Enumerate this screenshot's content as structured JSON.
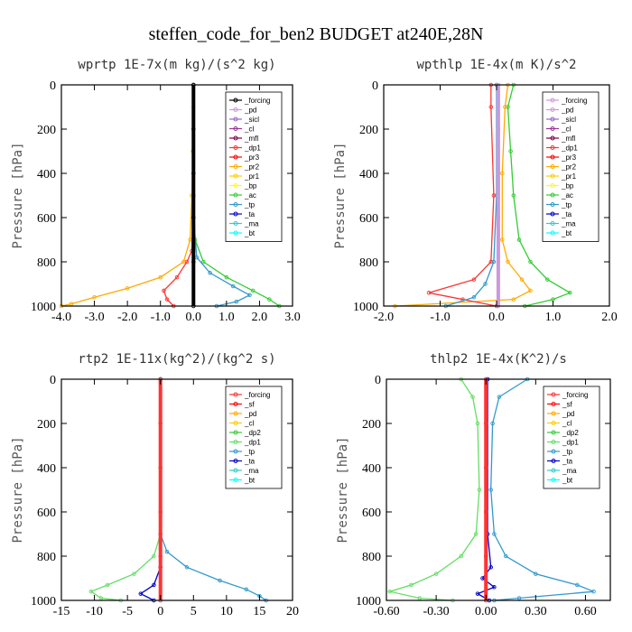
{
  "figure_title": "steffen_code_for_ben2  BUDGET at240E,28N",
  "chart_data": [
    {
      "type": "line",
      "title": "wprtp  1E-7x(m kg)/(s^2 kg)",
      "ylabel": "Pressure [hPa]",
      "xlim": [
        -4.0,
        3.0
      ],
      "ylim": [
        1000,
        0
      ],
      "xticks": [
        "-4.0",
        "-3.0",
        "-2.0",
        "-1.0",
        "0.0",
        "1.0",
        "2.0",
        "3.0"
      ],
      "yticks": [
        "0",
        "200",
        "400",
        "600",
        "800",
        "1000"
      ],
      "legend_position": "top-right",
      "legend_names": [
        "_forcing",
        "_pd",
        "_sicl",
        "_cl",
        "_mfl",
        "_dp1",
        "_pr3",
        "_pr2",
        "_pr1",
        "_bp",
        "_ac",
        "_tp",
        "_ta",
        "_ma",
        "_bt"
      ],
      "legend_colors": [
        "#000000",
        "#cc99dd",
        "#9966cc",
        "#993399",
        "#800040",
        "#ff3333",
        "#ff0000",
        "#ffaa00",
        "#ffcc00",
        "#ffff00",
        "#33cc33",
        "#3399cc",
        "#0000cc",
        "#33cccc",
        "#00ffff"
      ],
      "series": [
        {
          "name": "_pr2",
          "color": "#ffaa00",
          "points": [
            [
              0,
              0
            ],
            [
              0,
              100
            ],
            [
              -0.02,
              300
            ],
            [
              -0.05,
              500
            ],
            [
              -0.1,
              700
            ],
            [
              -0.3,
              800
            ],
            [
              -1.0,
              870
            ],
            [
              -2.0,
              920
            ],
            [
              -3.0,
              960
            ],
            [
              -3.7,
              990
            ],
            [
              -4.0,
              1000
            ]
          ]
        },
        {
          "name": "_dp1",
          "color": "#ff3333",
          "points": [
            [
              0,
              0
            ],
            [
              0,
              500
            ],
            [
              -0.05,
              750
            ],
            [
              -0.2,
              800
            ],
            [
              -0.5,
              870
            ],
            [
              -0.9,
              930
            ],
            [
              -0.8,
              970
            ],
            [
              -0.6,
              1000
            ]
          ]
        },
        {
          "name": "_ac",
          "color": "#33cc33",
          "points": [
            [
              0,
              0
            ],
            [
              0,
              500
            ],
            [
              0.05,
              700
            ],
            [
              0.3,
              800
            ],
            [
              1.0,
              870
            ],
            [
              1.8,
              930
            ],
            [
              2.3,
              970
            ],
            [
              2.6,
              1000
            ]
          ]
        },
        {
          "name": "_tp",
          "color": "#3399cc",
          "points": [
            [
              0,
              0
            ],
            [
              0,
              600
            ],
            [
              0.1,
              780
            ],
            [
              0.5,
              850
            ],
            [
              1.2,
              910
            ],
            [
              1.7,
              950
            ],
            [
              1.3,
              980
            ],
            [
              0.7,
              1000
            ]
          ]
        },
        {
          "name": "_forcing",
          "color": "#000000",
          "points": [
            [
              0,
              0
            ],
            [
              0,
              200
            ],
            [
              0,
              400
            ],
            [
              0,
              600
            ],
            [
              0,
              800
            ],
            [
              0,
              1000
            ]
          ]
        }
      ]
    },
    {
      "type": "line",
      "title": "wpthlp  1E-4x(m K)/s^2",
      "ylabel": "Pressure [hPa]",
      "xlim": [
        -2.0,
        2.0
      ],
      "ylim": [
        1000,
        0
      ],
      "xticks": [
        "-2.0",
        "-1.0",
        "0.0",
        "1.0",
        "2.0"
      ],
      "yticks": [
        "0",
        "200",
        "400",
        "600",
        "800",
        "1000"
      ],
      "legend_position": "top-right",
      "legend_names": [
        "_forcing",
        "_pd",
        "_sicl",
        "_cl",
        "_mfl",
        "_dp1",
        "_pr3",
        "_pr2",
        "_pr1",
        "_bp",
        "_ac",
        "_tp",
        "_ta",
        "_ma",
        "_bt"
      ],
      "legend_colors": [
        "#cc99dd",
        "#cc99dd",
        "#9966cc",
        "#993399",
        "#800040",
        "#ff3333",
        "#ff0000",
        "#ffaa00",
        "#ffcc00",
        "#ffff00",
        "#33cc33",
        "#3399cc",
        "#0000cc",
        "#33cccc",
        "#00ffff"
      ],
      "series": [
        {
          "name": "_ac",
          "color": "#33cc33",
          "points": [
            [
              0.3,
              0
            ],
            [
              0.2,
              100
            ],
            [
              0.25,
              300
            ],
            [
              0.3,
              500
            ],
            [
              0.4,
              700
            ],
            [
              0.6,
              800
            ],
            [
              0.9,
              880
            ],
            [
              1.3,
              940
            ],
            [
              1.0,
              970
            ],
            [
              0.5,
              1000
            ]
          ]
        },
        {
          "name": "_pr2",
          "color": "#ffaa00",
          "points": [
            [
              0.2,
              0
            ],
            [
              0.15,
              100
            ],
            [
              0.1,
              400
            ],
            [
              0.1,
              700
            ],
            [
              0.2,
              800
            ],
            [
              0.45,
              880
            ],
            [
              0.6,
              930
            ],
            [
              0.3,
              970
            ],
            [
              -1.8,
              1000
            ]
          ]
        },
        {
          "name": "_dp1",
          "color": "#ff3333",
          "points": [
            [
              -0.1,
              0
            ],
            [
              -0.1,
              100
            ],
            [
              -0.05,
              500
            ],
            [
              -0.1,
              800
            ],
            [
              -0.4,
              880
            ],
            [
              -1.2,
              940
            ],
            [
              -0.6,
              970
            ],
            [
              0.0,
              1000
            ]
          ]
        },
        {
          "name": "_tp",
          "color": "#3399cc",
          "points": [
            [
              0,
              0
            ],
            [
              0,
              500
            ],
            [
              -0.05,
              800
            ],
            [
              -0.2,
              900
            ],
            [
              -0.4,
              960
            ],
            [
              -0.9,
              1000
            ]
          ]
        },
        {
          "name": "_forcing",
          "color": "#cc99dd",
          "points": [
            [
              0.03,
              0
            ],
            [
              0.03,
              200
            ],
            [
              0.03,
              400
            ],
            [
              0.03,
              600
            ],
            [
              0.03,
              800
            ],
            [
              0.03,
              1000
            ]
          ]
        }
      ]
    },
    {
      "type": "line",
      "title": "rtp2  1E-11x(kg^2)/(kg^2 s)",
      "ylabel": "Pressure [hPa]",
      "xlim": [
        -15,
        20
      ],
      "ylim": [
        1000,
        0
      ],
      "xticks": [
        "-15",
        "-10",
        "-5",
        "0",
        "5",
        "10",
        "15",
        "20"
      ],
      "yticks": [
        "0",
        "200",
        "400",
        "600",
        "800",
        "1000"
      ],
      "legend_position": "top-right",
      "legend_names": [
        "_forcing",
        "_sf",
        "_pd",
        "_cl",
        "_dp2",
        "_dp1",
        "_tp",
        "_ta",
        "_ma",
        "_bt"
      ],
      "legend_colors": [
        "#ff3333",
        "#ff0000",
        "#ffaa00",
        "#ffcc00",
        "#33cc33",
        "#66dd66",
        "#3399cc",
        "#0000cc",
        "#33cccc",
        "#00ffff"
      ],
      "series": [
        {
          "name": "_dp1",
          "color": "#66dd66",
          "points": [
            [
              0,
              0
            ],
            [
              0,
              700
            ],
            [
              -1,
              800
            ],
            [
              -4,
              880
            ],
            [
              -8,
              930
            ],
            [
              -10.5,
              960
            ],
            [
              -9,
              990
            ],
            [
              -6,
              1000
            ]
          ]
        },
        {
          "name": "_tp",
          "color": "#3399cc",
          "points": [
            [
              0,
              0
            ],
            [
              0,
              700
            ],
            [
              1,
              780
            ],
            [
              4,
              850
            ],
            [
              9,
              910
            ],
            [
              13,
              950
            ],
            [
              15,
              980
            ],
            [
              16,
              1000
            ]
          ]
        },
        {
          "name": "_ta",
          "color": "#0000cc",
          "points": [
            [
              0,
              0
            ],
            [
              0,
              850
            ],
            [
              -1,
              930
            ],
            [
              -3,
              970
            ],
            [
              -1,
              1000
            ]
          ]
        },
        {
          "name": "_forcing",
          "color": "#ff3333",
          "points": [
            [
              0,
              0
            ],
            [
              0,
              200
            ],
            [
              0,
              400
            ],
            [
              0,
              600
            ],
            [
              0,
              800
            ],
            [
              0,
              1000
            ]
          ]
        }
      ]
    },
    {
      "type": "line",
      "title": "thlp2  1E-4x(K^2)/s",
      "ylabel": "Pressure [hPa]",
      "xlim": [
        -0.6,
        0.75
      ],
      "ylim": [
        1000,
        0
      ],
      "xticks": [
        "-0.60",
        "-0.30",
        "0.00",
        "0.30",
        "0.60"
      ],
      "yticks": [
        "0",
        "200",
        "400",
        "600",
        "800",
        "1000"
      ],
      "legend_position": "top-right",
      "legend_names": [
        "_forcing",
        "_sf",
        "_pd",
        "_cl",
        "_dp2",
        "_dp1",
        "_tp",
        "_ta",
        "_ma",
        "_bt"
      ],
      "legend_colors": [
        "#ff3333",
        "#ff0000",
        "#ffaa00",
        "#ffcc00",
        "#33cc33",
        "#66dd66",
        "#3399cc",
        "#0000cc",
        "#33cccc",
        "#00ffff"
      ],
      "series": [
        {
          "name": "_dp1",
          "color": "#66dd66",
          "points": [
            [
              -0.15,
              0
            ],
            [
              -0.08,
              80
            ],
            [
              -0.05,
              200
            ],
            [
              -0.04,
              500
            ],
            [
              -0.06,
              700
            ],
            [
              -0.15,
              800
            ],
            [
              -0.3,
              880
            ],
            [
              -0.45,
              930
            ],
            [
              -0.58,
              960
            ],
            [
              -0.4,
              990
            ],
            [
              -0.2,
              1000
            ]
          ]
        },
        {
          "name": "_tp",
          "color": "#3399cc",
          "points": [
            [
              0.25,
              0
            ],
            [
              0.08,
              80
            ],
            [
              0.04,
              200
            ],
            [
              0.03,
              500
            ],
            [
              0.05,
              700
            ],
            [
              0.12,
              800
            ],
            [
              0.3,
              880
            ],
            [
              0.55,
              930
            ],
            [
              0.65,
              960
            ],
            [
              0.2,
              990
            ],
            [
              0.05,
              1000
            ]
          ]
        },
        {
          "name": "_ta",
          "color": "#0000cc",
          "points": [
            [
              0.01,
              0
            ],
            [
              0.01,
              700
            ],
            [
              0.03,
              850
            ],
            [
              -0.02,
              900
            ],
            [
              0.05,
              940
            ],
            [
              -0.05,
              970
            ],
            [
              0.02,
              1000
            ]
          ]
        },
        {
          "name": "_forcing",
          "color": "#ff3333",
          "points": [
            [
              0,
              0
            ],
            [
              0,
              200
            ],
            [
              0,
              400
            ],
            [
              0,
              600
            ],
            [
              0,
              800
            ],
            [
              0,
              1000
            ]
          ]
        }
      ]
    }
  ]
}
